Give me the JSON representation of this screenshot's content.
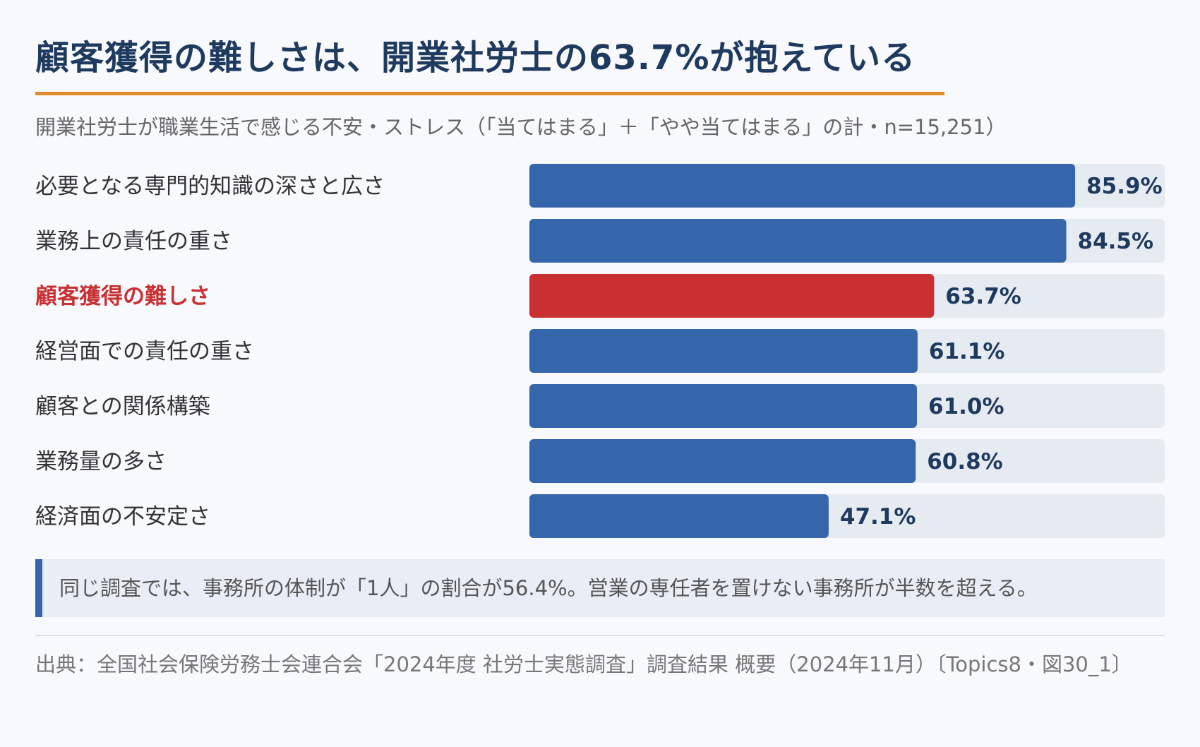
{
  "title": "顧客獲得の難しさは、開業社労士の63.7%が抱えている",
  "colors": {
    "bar_default": "#3565ab",
    "bar_highlight": "#c83032",
    "label_highlight": "#c83032",
    "track": "#e6ebf2",
    "value_text": "#1f3a5f",
    "title_rule": "#e08a27"
  },
  "chart_data": {
    "type": "bar",
    "orientation": "horizontal",
    "title": "顧客獲得の難しさは、開業社労士の63.7%が抱えている",
    "subtitle": "開業社労士が職業生活で感じる不安・ストレス（「当てはまる」＋「やや当てはまる」の計・n=15,251）",
    "categories": [
      "必要となる専門的知識の深さと広さ",
      "業務上の責任の重さ",
      "顧客獲得の難しさ",
      "経営面での責任の重さ",
      "顧客との関係構築",
      "業務量の多さ",
      "経済面の不安定さ"
    ],
    "values": [
      85.9,
      84.5,
      63.7,
      61.1,
      61.0,
      60.8,
      47.1
    ],
    "value_labels": [
      "85.9%",
      "84.5%",
      "63.7%",
      "61.1%",
      "61.0%",
      "60.8%",
      "47.1%"
    ],
    "highlight_index": 2,
    "xlim": [
      0,
      100
    ],
    "unit": "%",
    "grid": false,
    "legend": "none"
  },
  "note": {
    "text": "同じ調査では、事務所の体制が「1人」の割合が56.4%。営業の専任者を置けない事務所が半数を超える。"
  },
  "source": {
    "text": "出典：全国社会保険労務士会連合会「2024年度 社労士実態調査」調査結果 概要（2024年11月）〔Topics8・図30_1〕"
  }
}
